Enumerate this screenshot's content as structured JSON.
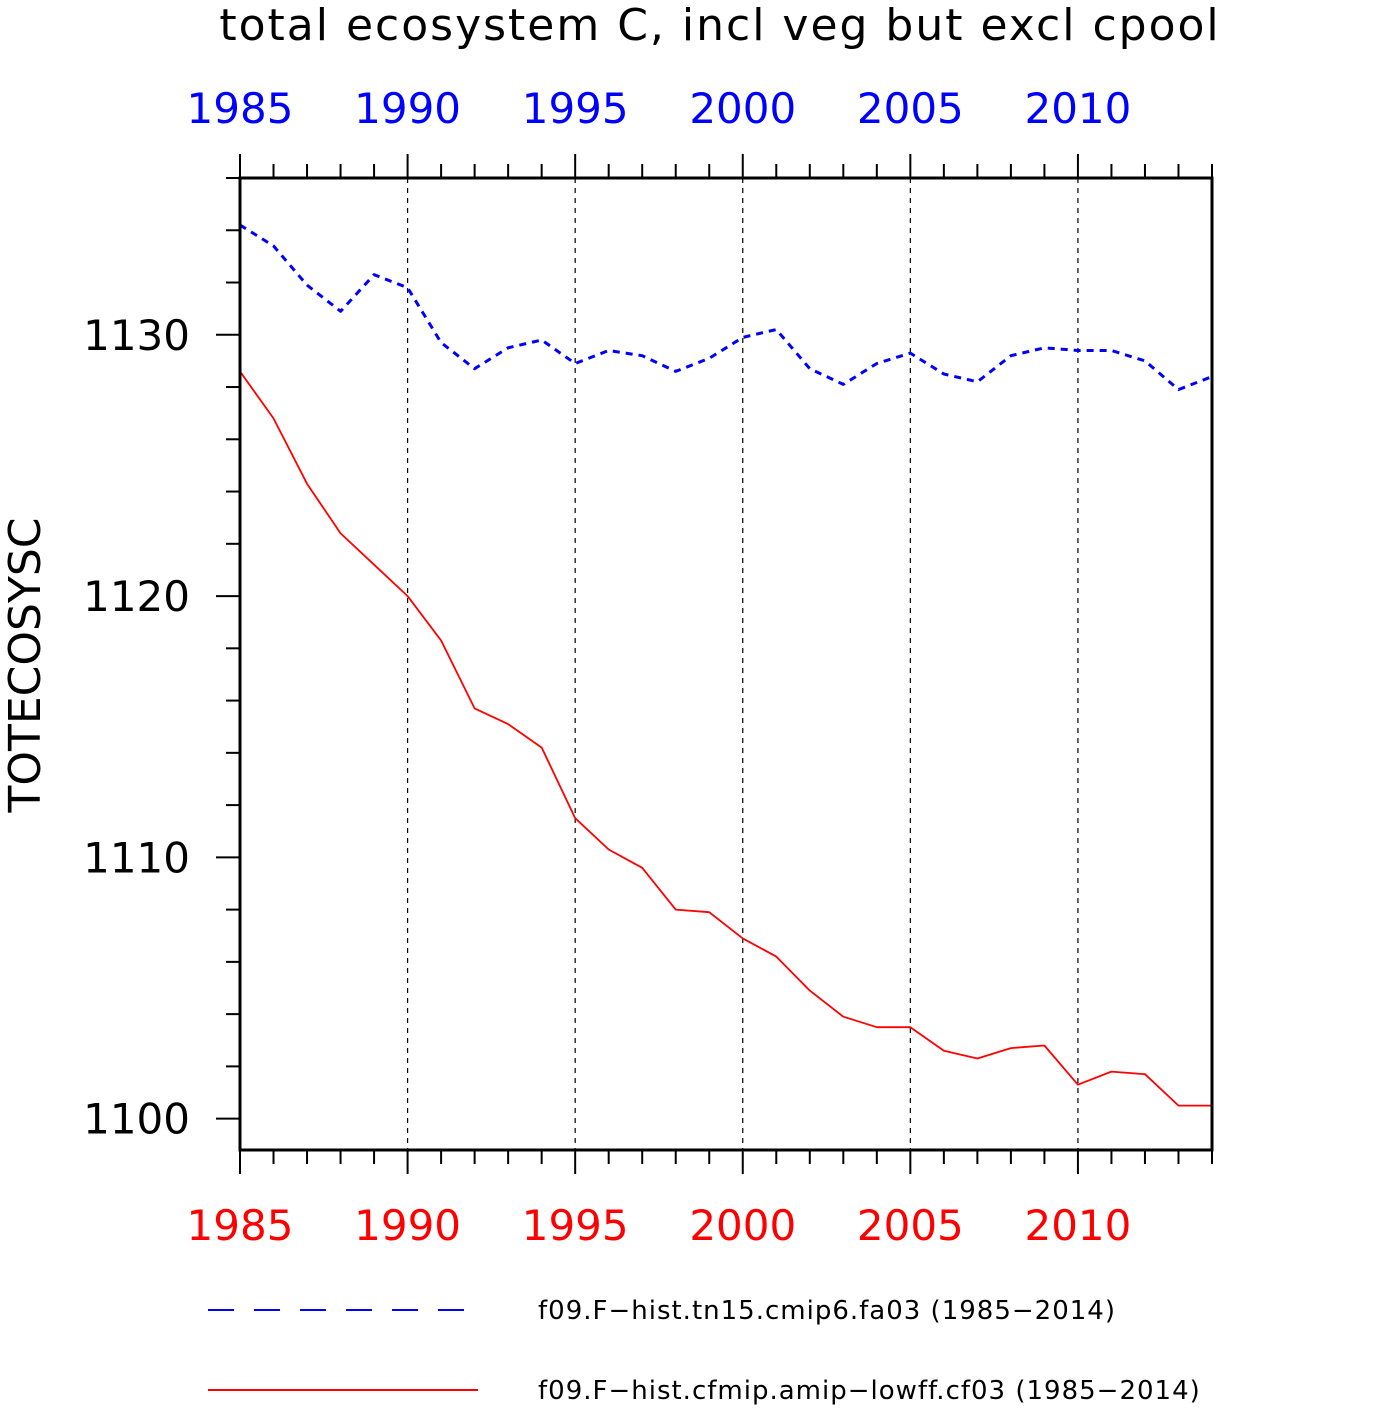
{
  "chart_data": {
    "type": "line",
    "title": "total ecosystem C, incl veg but excl cpool",
    "xlabel": "",
    "ylabel": "TOTECOSYSC",
    "xlim": [
      1985,
      2014
    ],
    "ylim": [
      1098.8,
      1136
    ],
    "x_ticks": [
      1985,
      1990,
      1995,
      2000,
      2005,
      2010
    ],
    "y_ticks": [
      1100,
      1110,
      1120,
      1130
    ],
    "top_axis_color": "#0000ff",
    "bottom_axis_color": "#ff0000",
    "grid": "vertical dashed at major x ticks",
    "legend_position": "bottom",
    "x": [
      1985,
      1986,
      1987,
      1988,
      1989,
      1990,
      1991,
      1992,
      1993,
      1994,
      1995,
      1996,
      1997,
      1998,
      1999,
      2000,
      2001,
      2002,
      2003,
      2004,
      2005,
      2006,
      2007,
      2008,
      2009,
      2010,
      2011,
      2012,
      2013,
      2014
    ],
    "series": [
      {
        "name": "f09.F−hist.tn15.cmip6.fa03 (1985−2014)",
        "color": "#0000ff",
        "dash": "dashed",
        "values": [
          1134.2,
          1133.4,
          1131.9,
          1130.9,
          1132.3,
          1131.8,
          1129.7,
          1128.7,
          1129.5,
          1129.8,
          1128.9,
          1129.4,
          1129.2,
          1128.6,
          1129.1,
          1129.9,
          1130.2,
          1128.7,
          1128.1,
          1128.9,
          1129.3,
          1128.5,
          1128.2,
          1129.2,
          1129.5,
          1129.4,
          1129.4,
          1129.0,
          1127.9,
          1128.4
        ]
      },
      {
        "name": "f09.F−hist.cfmip.amip−lowff.cf03 (1985−2014)",
        "color": "#ff0000",
        "dash": "solid",
        "values": [
          1128.6,
          1126.8,
          1124.3,
          1122.4,
          1121.2,
          1120.0,
          1118.3,
          1115.7,
          1115.1,
          1114.2,
          1111.5,
          1110.3,
          1109.6,
          1108.0,
          1107.9,
          1106.9,
          1106.2,
          1104.9,
          1103.9,
          1103.5,
          1103.5,
          1102.6,
          1102.3,
          1102.7,
          1102.8,
          1101.3,
          1101.8,
          1101.7,
          1100.5,
          1100.5
        ]
      }
    ]
  }
}
